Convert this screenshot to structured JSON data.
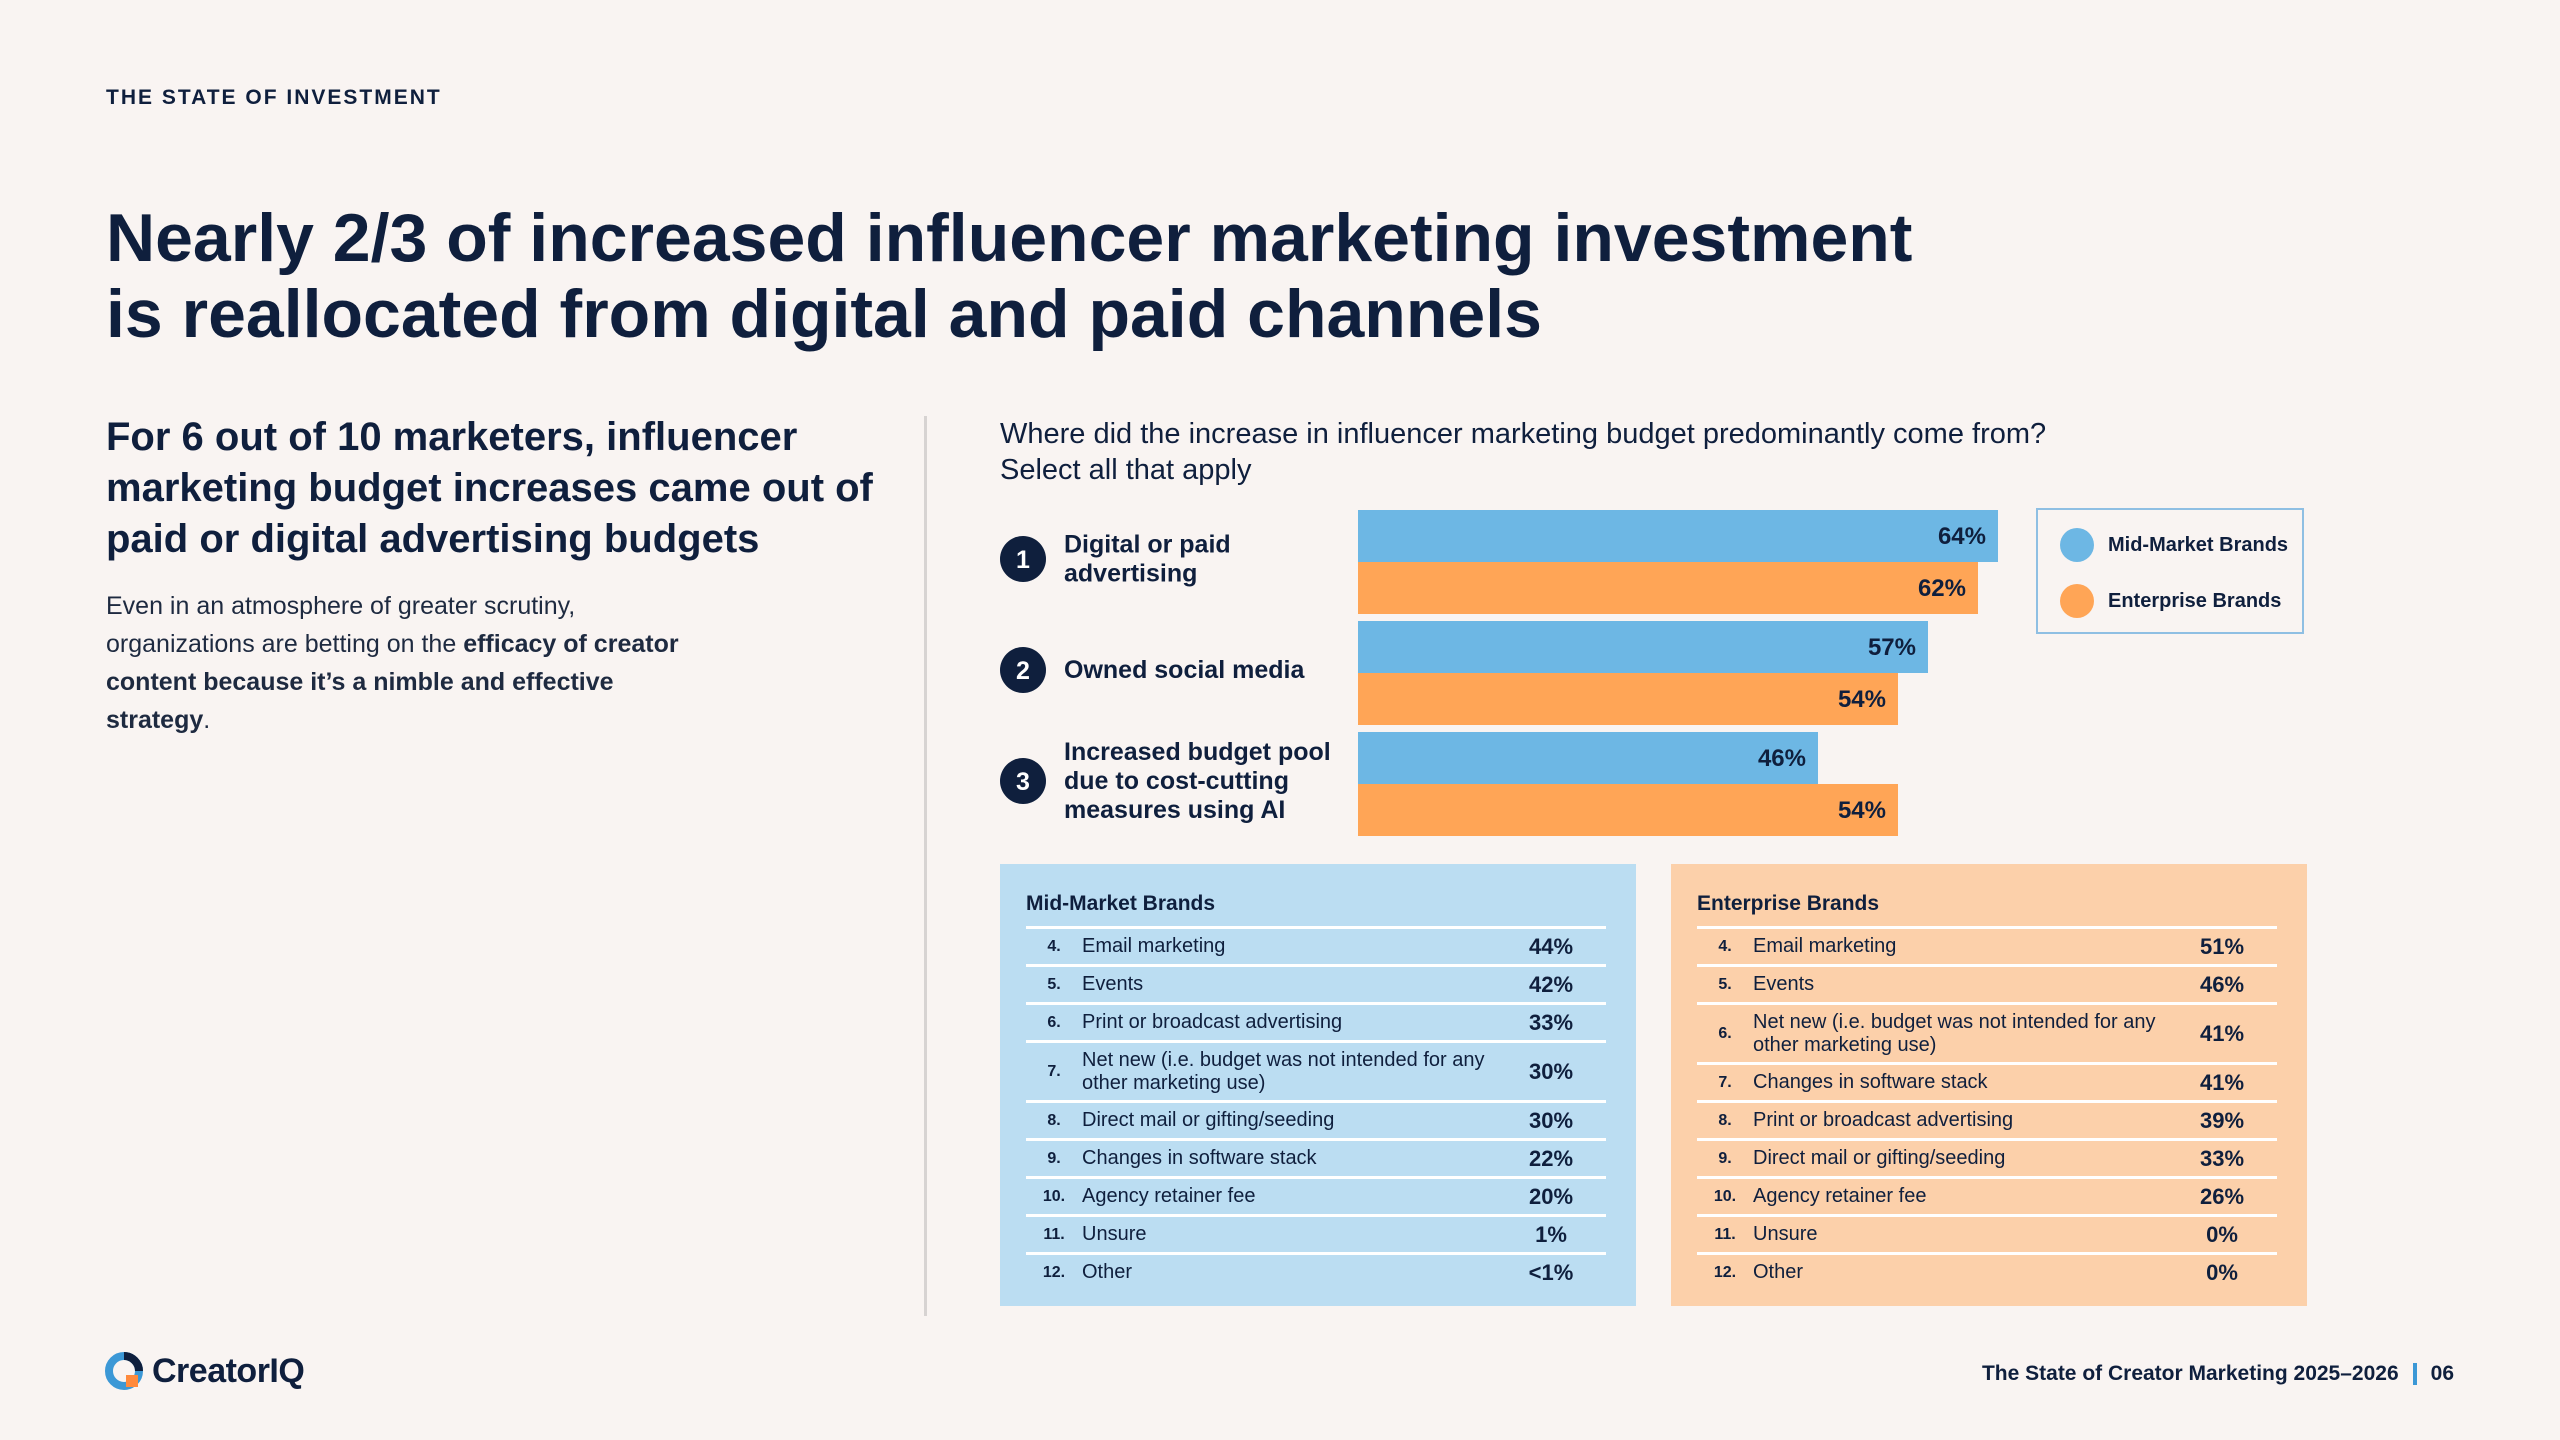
{
  "eyebrow": "THE STATE OF INVESTMENT",
  "headline": {
    "line1": "Nearly 2/3 of increased influencer marketing investment",
    "line2": "is reallocated from digital and paid channels"
  },
  "left": {
    "subheading": "For 6 out of 10 marketers, influencer marketing budget increases came out of paid or digital advertising budgets",
    "body_plain": "Even in an atmosphere of greater scrutiny, organizations are betting on the ",
    "body_bold": "efficacy of creator content because it’s a nimble and effective strategy",
    "body_end": "."
  },
  "question": {
    "line1": "Where did the increase in influencer marketing budget predominantly come from?",
    "line2": "Select all that apply"
  },
  "colors": {
    "mid": "#6db7e4",
    "enterprise": "#ffa556",
    "navy": "#0f1f3d"
  },
  "chart_data": {
    "type": "bar",
    "orientation": "horizontal",
    "title": "Where did the increase in influencer marketing budget predominantly come from?",
    "subtitle": "Select all that apply",
    "categories": [
      {
        "rank": "1",
        "lines": [
          "Digital or paid",
          "advertising"
        ]
      },
      {
        "rank": "2",
        "lines": [
          "Owned social media"
        ]
      },
      {
        "rank": "3",
        "lines": [
          "Increased budget pool",
          "due to cost-cutting",
          "measures using AI"
        ]
      }
    ],
    "series": [
      {
        "name": "Mid-Market Brands",
        "values": [
          64,
          57,
          46
        ]
      },
      {
        "name": "Enterprise Brands",
        "values": [
          62,
          54,
          54
        ]
      }
    ],
    "unit": "%",
    "xlim": [
      0,
      100
    ],
    "legend_position": "top-right"
  },
  "legend": {
    "mid": "Mid-Market Brands",
    "enterprise": "Enterprise Brands"
  },
  "mid_table": {
    "title": "Mid-Market Brands",
    "rows": [
      {
        "num": "4.",
        "label": "Email marketing",
        "pct": "44%"
      },
      {
        "num": "5.",
        "label": "Events",
        "pct": "42%"
      },
      {
        "num": "6.",
        "label": "Print or broadcast advertising",
        "pct": "33%"
      },
      {
        "num": "7.",
        "label": "Net new (i.e. budget was not intended for any other marketing use)",
        "pct": "30%"
      },
      {
        "num": "8.",
        "label": "Direct mail or gifting/seeding",
        "pct": "30%"
      },
      {
        "num": "9.",
        "label": "Changes in software stack",
        "pct": "22%"
      },
      {
        "num": "10.",
        "label": "Agency retainer fee",
        "pct": "20%"
      },
      {
        "num": "11.",
        "label": "Unsure",
        "pct": "1%"
      },
      {
        "num": "12.",
        "label": "Other",
        "pct": "<1%"
      }
    ]
  },
  "ent_table": {
    "title": "Enterprise Brands",
    "rows": [
      {
        "num": "4.",
        "label": "Email marketing",
        "pct": "51%"
      },
      {
        "num": "5.",
        "label": "Events",
        "pct": "46%"
      },
      {
        "num": "6.",
        "label": "Net new (i.e. budget was not intended for any other marketing use)",
        "pct": "41%"
      },
      {
        "num": "7.",
        "label": "Changes in software stack",
        "pct": "41%"
      },
      {
        "num": "8.",
        "label": "Print or broadcast advertising",
        "pct": "39%"
      },
      {
        "num": "9.",
        "label": "Direct mail or gifting/seeding",
        "pct": "33%"
      },
      {
        "num": "10.",
        "label": "Agency retainer fee",
        "pct": "26%"
      },
      {
        "num": "11.",
        "label": "Unsure",
        "pct": "0%"
      },
      {
        "num": "12.",
        "label": "Other",
        "pct": "0%"
      }
    ]
  },
  "footer": {
    "logo": "CreatorIQ",
    "report": "The State of Creator Marketing 2025–2026",
    "page": "06"
  }
}
